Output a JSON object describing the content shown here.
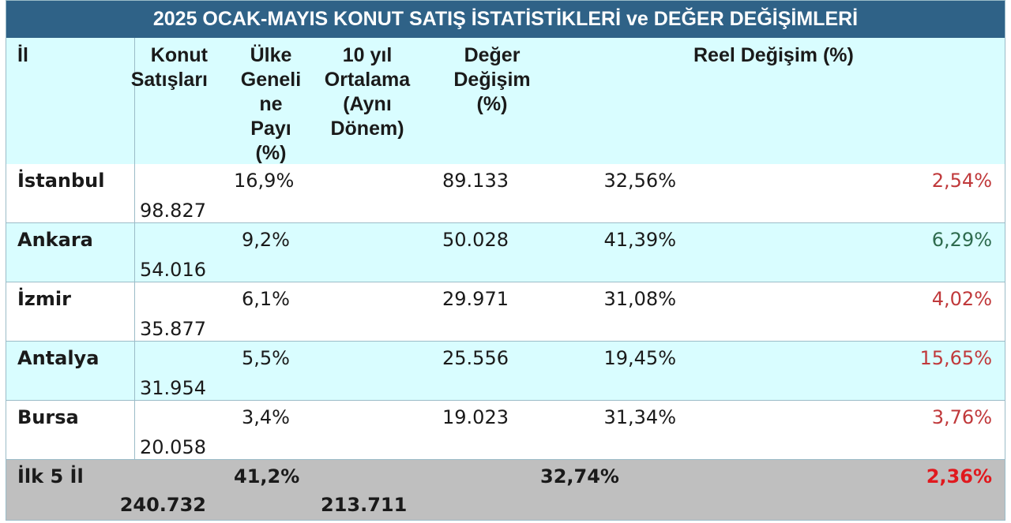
{
  "title": "2025 OCAK-MAYIS KONUT SATIŞ İSTATİSTİKLERİ ve DEĞER DEĞİŞİMLERİ",
  "headers": {
    "il": "İl",
    "konut_satislari": "Konut\nSatışları",
    "ulke_geneli": "Ülke\nGeneli\nne\nPayı\n(%)",
    "on_yil": "10 yıl\nOrtalama\n(Aynı\nDönem)",
    "deger_degisim": "Değer\nDeğişim\n(%)",
    "reel_degisim": "Reel Değişim (%)"
  },
  "rows": [
    {
      "il": "İstanbul",
      "konut": "98.827",
      "pay": "16,9%",
      "ortalama": "89.133",
      "deger": "32,56%",
      "reel": "2,54%"
    },
    {
      "il": "Ankara",
      "konut": "54.016",
      "pay": "9,2%",
      "ortalama": "50.028",
      "deger": "41,39%",
      "reel": "6,29%"
    },
    {
      "il": "İzmir",
      "konut": "35.877",
      "pay": "6,1%",
      "ortalama": "29.971",
      "deger": "31,08%",
      "reel": "4,02%"
    },
    {
      "il": "Antalya",
      "konut": "31.954",
      "pay": "5,5%",
      "ortalama": "25.556",
      "deger": "19,45%",
      "reel": "15,65%"
    },
    {
      "il": "Bursa",
      "konut": "20.058",
      "pay": "3,4%",
      "ortalama": "19.023",
      "deger": "31,34%",
      "reel": "3,76%"
    }
  ],
  "total": {
    "il": "İlk 5 İl",
    "konut": "240.732",
    "pay": "41,2%",
    "ortalama": "213.711",
    "deger": "32,74%",
    "reel": "2,36%"
  },
  "colors": {
    "title_bg": "#2f6287",
    "row_alt_bg": "#d9fdff",
    "total_bg": "#bfbfbf",
    "negative_red": "#c0393b",
    "positive_green": "#2e6b4e",
    "total_red": "#e0191e"
  }
}
